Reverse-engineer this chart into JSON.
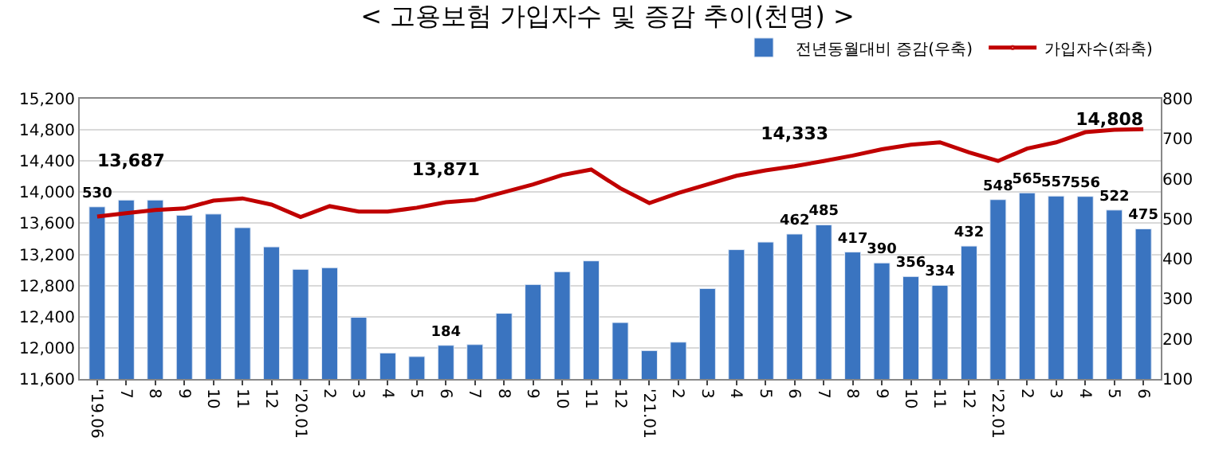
{
  "chart_data": {
    "type": "bar",
    "title": "< 고용보험 가입자수 및 증감 추이(천명) >",
    "categories": [
      "'19.06",
      "7",
      "8",
      "9",
      "10",
      "11",
      "12",
      "'20.01",
      "2",
      "3",
      "4",
      "5",
      "6",
      "7",
      "8",
      "9",
      "10",
      "11",
      "12",
      "'21.01",
      "2",
      "3",
      "4",
      "5",
      "6",
      "7",
      "8",
      "9",
      "10",
      "11",
      "12",
      "'22.01",
      "2",
      "3",
      "4",
      "5",
      "6"
    ],
    "series": [
      {
        "name": "전년동월대비 증감(우축)",
        "axis": "y2",
        "color": "#3a74c0",
        "values": [
          530,
          547,
          547,
          509,
          512,
          478,
          430,
          374,
          378,
          254,
          165,
          156,
          184,
          186,
          264,
          336,
          368,
          395,
          241,
          171,
          192,
          326,
          423,
          442,
          462,
          485,
          417,
          390,
          356,
          334,
          432,
          548,
          565,
          557,
          556,
          522,
          475
        ],
        "value_labels": [
          "530",
          null,
          null,
          null,
          null,
          null,
          null,
          null,
          null,
          null,
          null,
          null,
          "184",
          null,
          null,
          null,
          null,
          null,
          null,
          null,
          null,
          null,
          null,
          null,
          "462",
          "485",
          "417",
          "390",
          "356",
          "334",
          "432",
          "548",
          "565",
          "557",
          "556",
          "522",
          "475"
        ]
      },
      {
        "name": "가입자수(좌축)",
        "type": "line",
        "axis": "y",
        "color": "#c00000",
        "line_style": "solid",
        "values": [
          13687,
          13730,
          13770,
          13790,
          13890,
          13920,
          13840,
          13680,
          13820,
          13750,
          13750,
          13800,
          13871,
          13900,
          14000,
          14100,
          14220,
          14290,
          14050,
          13860,
          13990,
          14100,
          14210,
          14280,
          14333,
          14400,
          14470,
          14550,
          14610,
          14640,
          14510,
          14400,
          14560,
          14640,
          14770,
          14800,
          14808
        ],
        "value_labels": [
          "13,687",
          null,
          null,
          null,
          null,
          null,
          null,
          null,
          null,
          null,
          null,
          null,
          "13,871",
          null,
          null,
          null,
          null,
          null,
          null,
          null,
          null,
          null,
          null,
          null,
          "14,333",
          null,
          null,
          null,
          null,
          null,
          null,
          null,
          null,
          null,
          null,
          null,
          "14,808"
        ]
      }
    ],
    "ylim": [
      11600,
      15200
    ],
    "yticks": [
      {
        "value": 11600,
        "label": "11,600"
      },
      {
        "value": 12000,
        "label": "12,000"
      },
      {
        "value": 12400,
        "label": "12,400"
      },
      {
        "value": 12800,
        "label": "12,800"
      },
      {
        "value": 13200,
        "label": "13,200"
      },
      {
        "value": 13600,
        "label": "13,600"
      },
      {
        "value": 14000,
        "label": "14,000"
      },
      {
        "value": 14400,
        "label": "14,400"
      },
      {
        "value": 14800,
        "label": "14,800"
      },
      {
        "value": 15200,
        "label": "15,200"
      }
    ],
    "y2lim": [
      100,
      800
    ],
    "y2ticks": [
      100,
      200,
      300,
      400,
      500,
      600,
      700,
      800
    ],
    "grid": "y",
    "legend": "top right"
  }
}
